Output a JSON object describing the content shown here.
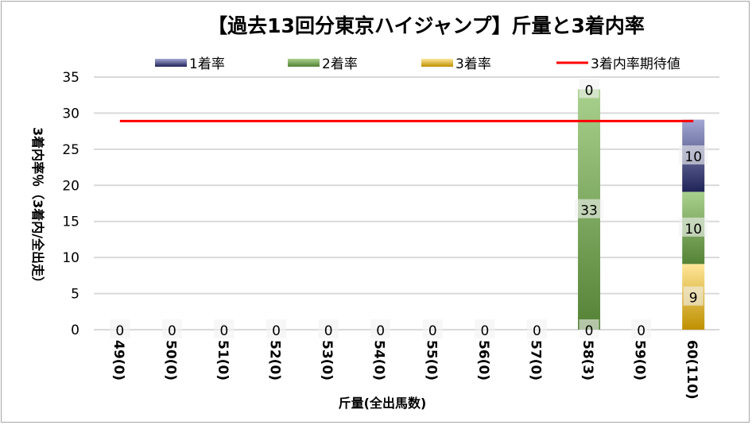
{
  "chart_data": {
    "type": "bar",
    "stacked": true,
    "title": "【過去13回分東京ハイジャンプ】斤量と3着内率",
    "xlabel": "斤量(全出馬数)",
    "ylabel": "3着内率％（3着内/全出走）",
    "ylim": [
      0,
      35
    ],
    "yticks": [
      0,
      5,
      10,
      15,
      20,
      25,
      30,
      35
    ],
    "grid": true,
    "legend_position": "top",
    "categories": [
      "49(0)",
      "50(0)",
      "51(0)",
      "52(0)",
      "53(0)",
      "54(0)",
      "55(0)",
      "56(0)",
      "57(0)",
      "58(3)",
      "59(0)",
      "60(110)"
    ],
    "series": [
      {
        "name": "3着率",
        "values": [
          0,
          0,
          0,
          0,
          0,
          0,
          0,
          0,
          0,
          0,
          0,
          9.1
        ],
        "labels": [
          "0",
          "0",
          "0",
          "0",
          "0",
          "0",
          "0",
          "0",
          "0",
          "0",
          "0",
          "9"
        ],
        "color_top": "#ffe699",
        "color_bottom": "#bf9000"
      },
      {
        "name": "2着率",
        "values": [
          0,
          0,
          0,
          0,
          0,
          0,
          0,
          0,
          0,
          33.3,
          0,
          10.0
        ],
        "labels": [
          "",
          "",
          "",
          "",
          "",
          "",
          "",
          "",
          "",
          "33",
          "",
          "10"
        ],
        "color_top": "#a9d18e",
        "color_bottom": "#548235"
      },
      {
        "name": "1着率",
        "values": [
          0,
          0,
          0,
          0,
          0,
          0,
          0,
          0,
          0,
          0,
          0,
          10.0
        ],
        "labels": [
          "",
          "",
          "",
          "",
          "",
          "",
          "",
          "",
          "",
          "0",
          "",
          "10"
        ],
        "color_top": "#a3a8d4",
        "color_bottom": "#1f2356"
      }
    ],
    "line": {
      "name": "3着内率期待値",
      "value": 28.9,
      "color": "#ff0000"
    }
  }
}
